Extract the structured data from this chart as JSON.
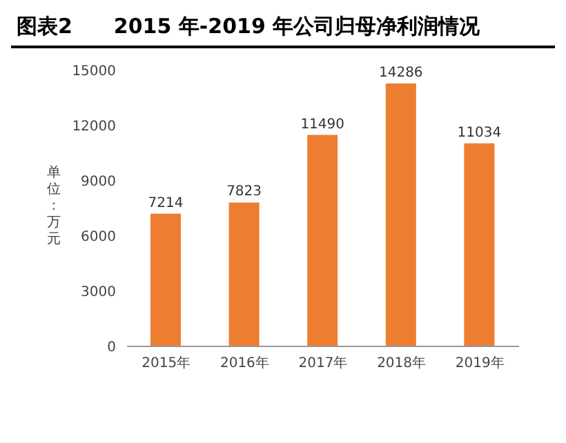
{
  "chart_data": {
    "type": "bar",
    "title": "图表2　　2015 年-2019 年公司归母净利润情况",
    "ylabel": "单位：万元",
    "categories": [
      "2015年",
      "2016年",
      "2017年",
      "2018年",
      "2019年"
    ],
    "values": [
      7214,
      7823,
      11490,
      14286,
      11034
    ],
    "color": "#ed7d31",
    "ylim": [
      0,
      15000
    ],
    "yticks": [
      0,
      3000,
      6000,
      9000,
      12000,
      15000
    ],
    "data_labels": true,
    "grid": false
  }
}
